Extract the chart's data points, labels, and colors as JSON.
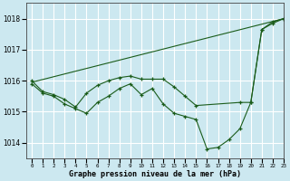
{
  "title": "Graphe pression niveau de la mer (hPa)",
  "bg_color": "#cce8f0",
  "line_color": "#1a5c1a",
  "grid_color": "#ffffff",
  "xlim": [
    -0.5,
    23
  ],
  "ylim": [
    1013.5,
    1018.5
  ],
  "yticks": [
    1014,
    1015,
    1016,
    1017,
    1018
  ],
  "xtick_labels": [
    "0",
    "1",
    "2",
    "3",
    "4",
    "5",
    "6",
    "7",
    "8",
    "9",
    "10",
    "11",
    "12",
    "13",
    "14",
    "15",
    "16",
    "17",
    "18",
    "19",
    "20",
    "21",
    "22",
    "23"
  ],
  "series": [
    {
      "x": [
        0,
        23
      ],
      "y": [
        1015.95,
        1018.0
      ],
      "marker": false
    },
    {
      "x": [
        0,
        1,
        2,
        3,
        4,
        5,
        6,
        7,
        8,
        9,
        10,
        11,
        12,
        13,
        14,
        15,
        19,
        20,
        21,
        22,
        23
      ],
      "y": [
        1016.0,
        1015.65,
        1015.55,
        1015.4,
        1015.15,
        1015.6,
        1015.85,
        1016.0,
        1016.1,
        1016.15,
        1016.05,
        1016.05,
        1016.05,
        1015.8,
        1015.5,
        1015.2,
        1015.3,
        1015.3,
        1017.65,
        1017.9,
        1018.0
      ],
      "marker": true
    },
    {
      "x": [
        0,
        1,
        2,
        3,
        4,
        5,
        6,
        7,
        8,
        9,
        10,
        11,
        12,
        13,
        14,
        15,
        16,
        17,
        18,
        19,
        20,
        21,
        22,
        23
      ],
      "y": [
        1015.9,
        1015.6,
        1015.5,
        1015.25,
        1015.1,
        1014.95,
        1015.3,
        1015.5,
        1015.75,
        1015.9,
        1015.55,
        1015.75,
        1015.25,
        1014.95,
        1014.85,
        1014.75,
        1013.8,
        1013.85,
        1014.1,
        1014.45,
        1015.3,
        1017.65,
        1017.85,
        1018.0
      ],
      "marker": true
    }
  ]
}
